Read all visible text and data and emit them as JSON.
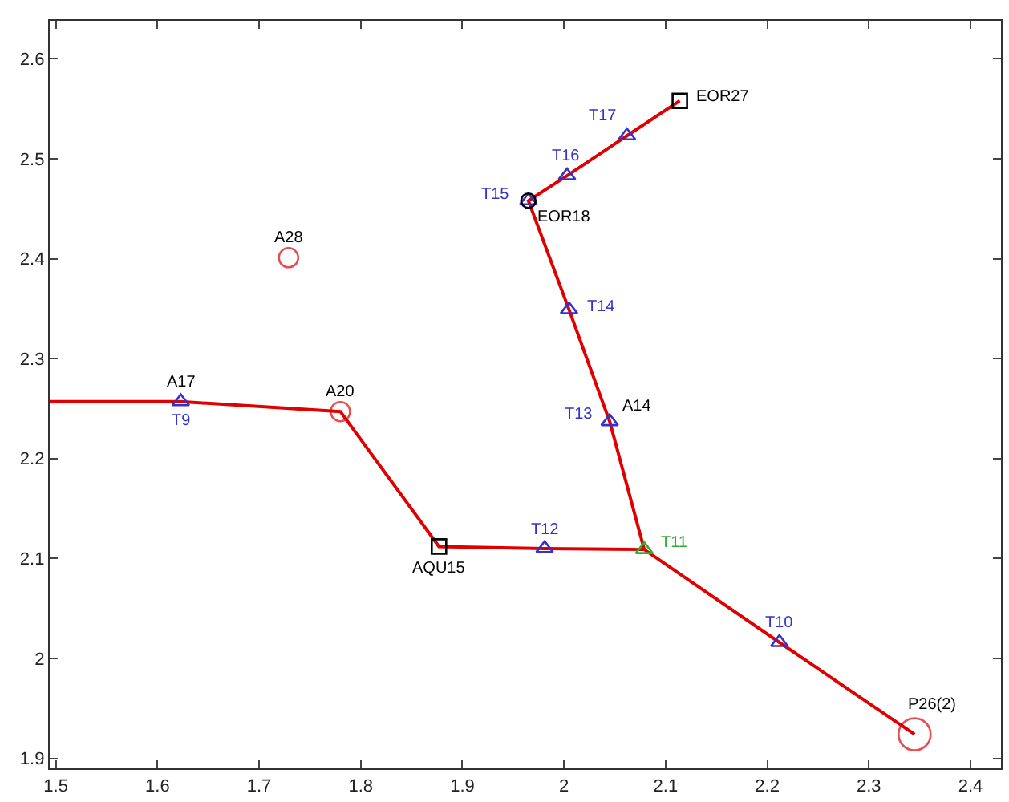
{
  "chart_data": {
    "type": "scatter",
    "xlim": [
      1.494,
      2.43
    ],
    "ylim": [
      1.89,
      2.638
    ],
    "xticks": [
      1.5,
      1.6,
      1.7,
      1.8,
      1.9,
      2,
      2.1,
      2.2,
      2.3,
      2.4
    ],
    "yticks": [
      1.9,
      2,
      2.1,
      2.2,
      2.3,
      2.4,
      2.5,
      2.6
    ],
    "grid": false,
    "series": [
      {
        "type": "line",
        "color": "#e00000",
        "marker": "none",
        "line_style": "solid",
        "x": [
          1.494,
          1.623,
          1.78,
          1.877,
          1.981,
          2.079,
          2.212,
          2.345
        ],
        "values": [
          2.257,
          2.257,
          2.247,
          2.112,
          2.11,
          2.109,
          2.016,
          1.924
        ]
      },
      {
        "type": "line",
        "color": "#e00000",
        "marker": "none",
        "line_style": "solid",
        "x": [
          2.079,
          2.045,
          2.005,
          1.965,
          2.003,
          2.062,
          2.114
        ],
        "values": [
          2.109,
          2.237,
          2.349,
          2.458,
          2.483,
          2.523,
          2.558
        ]
      },
      {
        "marker": "triangle",
        "colors": [
          "#3333cc",
          "#3333cc",
          "#33aa33",
          "#3333cc",
          "#3333cc",
          "#3333cc",
          "#3333cc",
          "#3333cc",
          "#3333cc"
        ],
        "x": [
          1.623,
          2.212,
          2.079,
          1.981,
          2.045,
          2.005,
          1.965,
          2.003,
          2.062
        ],
        "values": [
          2.257,
          2.016,
          2.109,
          2.11,
          2.237,
          2.349,
          2.458,
          2.483,
          2.523
        ]
      },
      {
        "type": "bubble",
        "marker": "circle",
        "color": "#e00000",
        "x": [
          1.78,
          1.729,
          2.345
        ],
        "values": [
          2.247,
          2.401,
          1.924
        ],
        "sizes": [
          0.36,
          0.36,
          1
        ]
      },
      {
        "marker": "square",
        "color": "#000000",
        "x": [
          1.877,
          2.114
        ],
        "values": [
          2.112,
          2.558
        ]
      },
      {
        "marker": "circle",
        "color": "#000000",
        "x": [
          1.965
        ],
        "values": [
          2.458
        ]
      }
    ],
    "annotations": [
      {
        "text": "A17",
        "x": 1.623,
        "y": 2.257
      },
      {
        "text": "T9",
        "x": 1.623,
        "y": 2.257
      },
      {
        "text": "A20",
        "x": 1.78,
        "y": 2.247
      },
      {
        "text": "A28",
        "x": 1.729,
        "y": 2.401
      },
      {
        "text": "AQU15",
        "x": 1.877,
        "y": 2.112
      },
      {
        "text": "T12",
        "x": 1.981,
        "y": 2.11
      },
      {
        "text": "T11",
        "x": 2.079,
        "y": 2.109
      },
      {
        "text": "T10",
        "x": 2.212,
        "y": 2.016
      },
      {
        "text": "P26(2)",
        "x": 2.345,
        "y": 1.924
      },
      {
        "text": "T13",
        "x": 2.045,
        "y": 2.237
      },
      {
        "text": "A14",
        "x": 2.045,
        "y": 2.237
      },
      {
        "text": "T14",
        "x": 2.005,
        "y": 2.349
      },
      {
        "text": "T15",
        "x": 1.965,
        "y": 2.458
      },
      {
        "text": "EOR18",
        "x": 1.965,
        "y": 2.458
      },
      {
        "text": "T16",
        "x": 2.003,
        "y": 2.483
      },
      {
        "text": "T17",
        "x": 2.062,
        "y": 2.523
      },
      {
        "text": "EOR27",
        "x": 2.114,
        "y": 2.558
      }
    ]
  }
}
